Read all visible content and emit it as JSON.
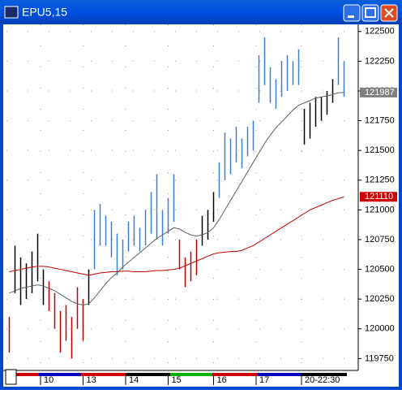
{
  "window": {
    "title": "EPU5,15"
  },
  "chart_data": {
    "type": "ohlc",
    "ylim": [
      119650,
      122560
    ],
    "yticks": [
      119750,
      120000,
      120250,
      120500,
      120750,
      121000,
      121250,
      121500,
      121750,
      122000,
      122250,
      122500
    ],
    "xlim": [
      0,
      60
    ],
    "xticks": [
      {
        "value": 6,
        "label": "10"
      },
      {
        "value": 13.5,
        "label": "13"
      },
      {
        "value": 21,
        "label": "14"
      },
      {
        "value": 28.5,
        "label": "15"
      },
      {
        "value": 36.5,
        "label": "16"
      },
      {
        "value": 44,
        "label": "17"
      },
      {
        "value": 52,
        "label": "20-22:30"
      }
    ],
    "grid": true,
    "low": [
      119800,
      120300,
      120200,
      120250,
      120300,
      120400,
      120200,
      120150,
      120000,
      119800,
      119900,
      119750,
      120000,
      119900,
      120200,
      120500,
      120700,
      120700,
      120600,
      120450,
      120500,
      120650,
      120700,
      120650,
      120700,
      120800,
      120750,
      120700,
      120800,
      120900,
      120500,
      120350,
      120400,
      120450,
      120700,
      120750,
      120900,
      121100,
      121250,
      121300,
      121400,
      121350,
      121450,
      121500,
      121900,
      122050,
      121900,
      121850,
      121950,
      122000,
      122050,
      122050,
      121550,
      121600,
      121700,
      121750,
      121800,
      121900,
      122050,
      121950
    ],
    "high": [
      120100,
      120700,
      120600,
      120550,
      120650,
      120800,
      120500,
      120400,
      120300,
      120150,
      120200,
      120100,
      120350,
      120250,
      120500,
      121000,
      121050,
      120950,
      120900,
      120800,
      120750,
      120900,
      120950,
      120850,
      121000,
      121150,
      121300,
      121000,
      121100,
      121300,
      120750,
      120600,
      120650,
      120750,
      120950,
      121000,
      121150,
      121400,
      121650,
      121600,
      121700,
      121600,
      121700,
      121750,
      122300,
      122450,
      122200,
      122100,
      122250,
      122300,
      122250,
      122350,
      121850,
      121900,
      121950,
      121950,
      122000,
      122100,
      122450,
      122250
    ],
    "colors": [
      "#c00000",
      "#000000",
      "#000000",
      "#000000",
      "#000000",
      "#000000",
      "#000000",
      "#c00000",
      "#c00000",
      "#c00000",
      "#c00000",
      "#c00000",
      "#c00000",
      "#c00000",
      "#000000",
      "#3a7fd5",
      "#3a7fd5",
      "#3a7fd5",
      "#3a7fd5",
      "#3a7fd5",
      "#3a7fd5",
      "#3a7fd5",
      "#3a7fd5",
      "#3a7fd5",
      "#3a7fd5",
      "#3a7fd5",
      "#3a7fd5",
      "#3a7fd5",
      "#3a7fd5",
      "#3a7fd5",
      "#c00000",
      "#c00000",
      "#c00000",
      "#c00000",
      "#000000",
      "#000000",
      "#000000",
      "#3a7fd5",
      "#3a7fd5",
      "#3a7fd5",
      "#3a7fd5",
      "#3a7fd5",
      "#3a7fd5",
      "#3a7fd5",
      "#3a7fd5",
      "#3a7fd5",
      "#3a7fd5",
      "#3a7fd5",
      "#3a7fd5",
      "#3a7fd5",
      "#3a7fd5",
      "#3a7fd5",
      "#000000",
      "#000000",
      "#000000",
      "#000000",
      "#000000",
      "#000000",
      "#3a7fd5",
      "#3a7fd5"
    ],
    "series": [
      {
        "color": "#606060",
        "values": [
          120300,
          120320,
          120340,
          120350,
          120360,
          120370,
          120360,
          120340,
          120320,
          120290,
          120260,
          120230,
          120210,
          120200,
          120210,
          120260,
          120320,
          120380,
          120430,
          120470,
          120520,
          120560,
          120600,
          120640,
          120680,
          120720,
          120760,
          120790,
          120820,
          120850,
          120840,
          120810,
          120790,
          120780,
          120790,
          120810,
          120850,
          120920,
          121000,
          121080,
          121160,
          121240,
          121320,
          121400,
          121480,
          121560,
          121630,
          121690,
          121740,
          121790,
          121840,
          121880,
          121900,
          121920,
          121940,
          121950,
          121960,
          121970,
          121985,
          121987
        ]
      },
      {
        "color": "#c00000",
        "values": [
          120480,
          120490,
          120500,
          120510,
          120520,
          120525,
          120525,
          120520,
          120510,
          120500,
          120490,
          120480,
          120470,
          120460,
          120450,
          120460,
          120470,
          120475,
          120480,
          120480,
          120485,
          120485,
          120480,
          120480,
          120480,
          120485,
          120490,
          120490,
          120495,
          120500,
          120510,
          120530,
          120550,
          120570,
          120590,
          120610,
          120630,
          120640,
          120645,
          120650,
          120650,
          120660,
          120680,
          120700,
          120730,
          120760,
          120790,
          120820,
          120850,
          120880,
          120910,
          120940,
          120970,
          121000,
          121020,
          121040,
          121060,
          121080,
          121095,
          121110
        ]
      }
    ],
    "price_markers": [
      {
        "value": 121987,
        "color": "#808080"
      },
      {
        "value": 121110,
        "color": "#d00000"
      }
    ]
  }
}
